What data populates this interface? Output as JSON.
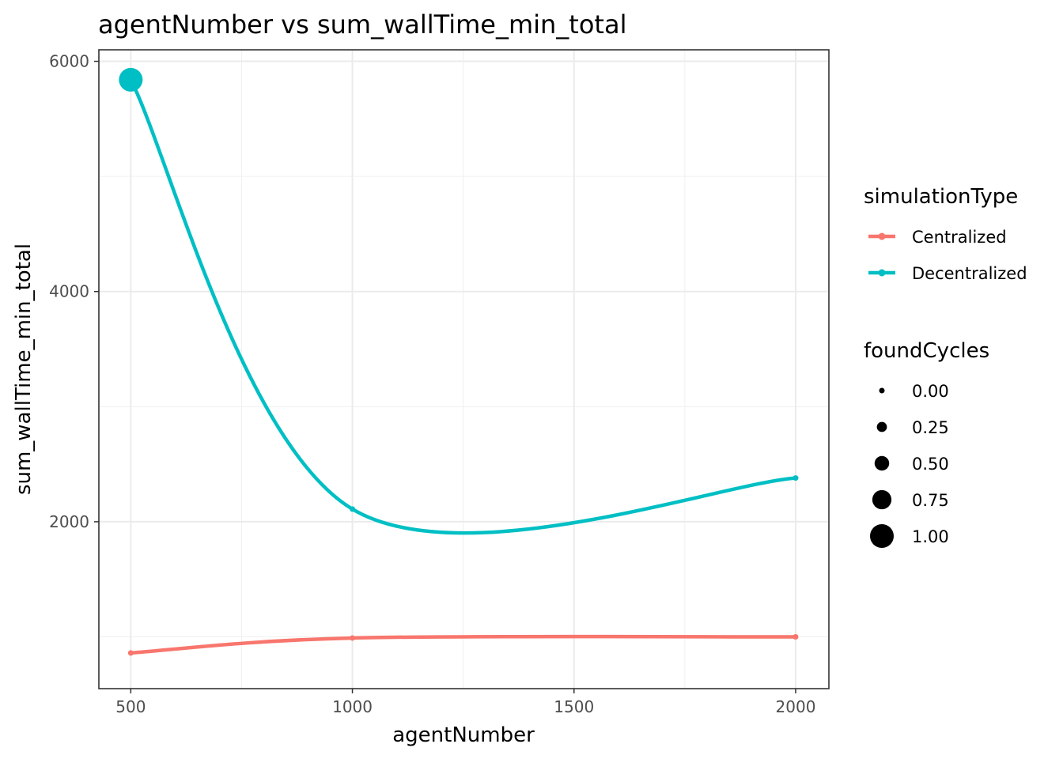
{
  "chart_data": {
    "type": "line",
    "title": "agentNumber  vs  sum_wallTime_min_total",
    "xlabel": "agentNumber",
    "ylabel": "sum_wallTime_min_total",
    "x_ticks": [
      500,
      1000,
      1500,
      2000
    ],
    "y_ticks": [
      2000,
      4000,
      6000
    ],
    "xlim": [
      428,
      2075
    ],
    "ylim": [
      550,
      6100
    ],
    "grid": true,
    "legend_position": "right",
    "series": [
      {
        "name": "Centralized",
        "color": "#F8766D",
        "points": [
          {
            "x": 500,
            "y": 860,
            "foundCycles": 0
          },
          {
            "x": 1000,
            "y": 990,
            "foundCycles": 0
          },
          {
            "x": 2000,
            "y": 1000,
            "foundCycles": 0
          }
        ]
      },
      {
        "name": "Decentralized",
        "color": "#00BFC4",
        "points": [
          {
            "x": 500,
            "y": 5840,
            "foundCycles": 1
          },
          {
            "x": 1000,
            "y": 2110,
            "foundCycles": 0
          },
          {
            "x": 2000,
            "y": 2380,
            "foundCycles": 0
          }
        ]
      }
    ],
    "color_legend": {
      "title": "simulationType",
      "entries": [
        "Centralized",
        "Decentralized"
      ]
    },
    "size_legend": {
      "title": "foundCycles",
      "entries": [
        {
          "label": "0.00",
          "value": 0
        },
        {
          "label": "0.25",
          "value": 0.25
        },
        {
          "label": "0.50",
          "value": 0.5
        },
        {
          "label": "0.75",
          "value": 0.75
        },
        {
          "label": "1.00",
          "value": 1
        }
      ]
    }
  }
}
